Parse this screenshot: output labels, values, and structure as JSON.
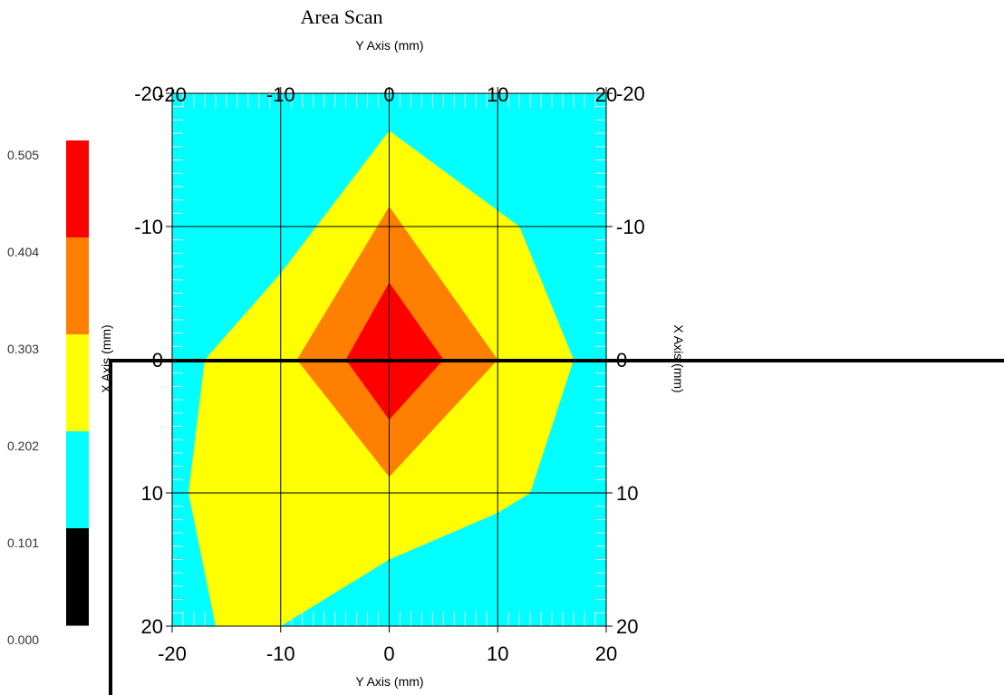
{
  "chart_data": {
    "type": "heatmap",
    "subtype": "filled-contour",
    "title": "Area Scan",
    "xlabel": "Y Axis (mm)",
    "ylabel": "X Axis (mm)",
    "xlim": [
      -20,
      20
    ],
    "ylim": [
      -20,
      20
    ],
    "y_inverted": true,
    "grid": true,
    "x_ticks": [
      -20,
      -10,
      0,
      10,
      20
    ],
    "y_ticks": [
      -20,
      -10,
      0,
      10,
      20
    ],
    "x_tick_labels": [
      "-20",
      "-10",
      "0",
      "10",
      "20"
    ],
    "y_tick_labels": [
      "-20",
      "-10",
      "0",
      "10",
      "20"
    ],
    "legend": {
      "placement": "left",
      "levels": [
        {
          "from": "0.000",
          "to": "0.101",
          "color": "#000000"
        },
        {
          "from": "0.101",
          "to": "0.202",
          "color": "#00ffff"
        },
        {
          "from": "0.202",
          "to": "0.303",
          "color": "#ffff00"
        },
        {
          "from": "0.303",
          "to": "0.404",
          "color": "#ff8000"
        },
        {
          "from": "0.404",
          "to": "0.505",
          "color": "#ff0000"
        }
      ],
      "tick_labels": [
        "0.505",
        "0.404",
        "0.303",
        "0.202",
        "0.101",
        "0.000"
      ]
    },
    "background_color": "#00ffff",
    "regions": [
      {
        "level": "0.202-0.303",
        "color": "#ffff00",
        "polygon": [
          [
            0,
            -17.2
          ],
          [
            12,
            -10
          ],
          [
            17,
            0
          ],
          [
            13,
            10
          ],
          [
            10,
            11.5
          ],
          [
            0,
            15
          ],
          [
            -10,
            20
          ],
          [
            -16,
            20
          ],
          [
            -18.5,
            10
          ],
          [
            -17,
            0
          ],
          [
            -10,
            -6.5
          ]
        ]
      },
      {
        "level": "0.303-0.404",
        "color": "#ff8000",
        "polygon": [
          [
            0,
            -11.5
          ],
          [
            10,
            0
          ],
          [
            0,
            8.8
          ],
          [
            -8.5,
            0
          ]
        ]
      },
      {
        "level": "0.404-0.505",
        "color": "#ff0000",
        "polygon": [
          [
            0,
            -5.8
          ],
          [
            5,
            0
          ],
          [
            0,
            4.5
          ],
          [
            -4,
            0
          ]
        ]
      }
    ]
  }
}
